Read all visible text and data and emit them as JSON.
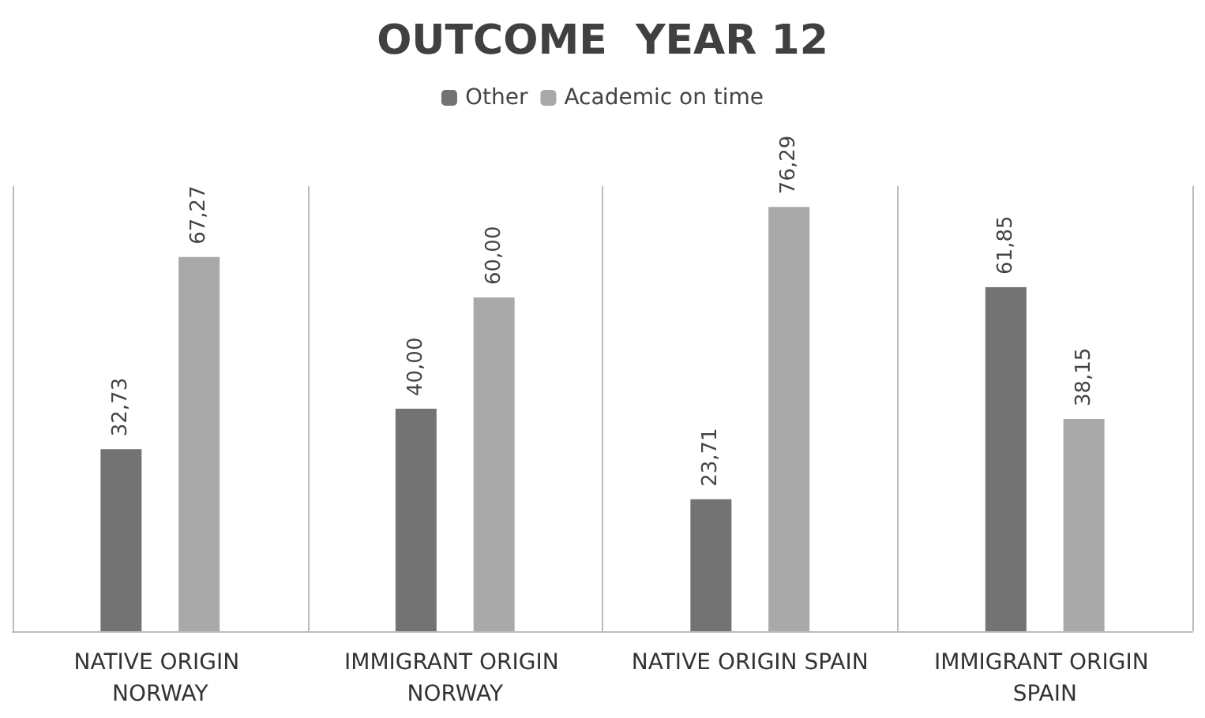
{
  "chart_data": {
    "type": "bar",
    "title": "OUTCOME  YEAR 12",
    "categories": [
      "NATIVE ORIGIN NORWAY",
      "IMMIGRANT ORIGIN NORWAY",
      "NATIVE ORIGIN SPAIN",
      "IMMIGRANT ORIGIN SPAIN"
    ],
    "series": [
      {
        "name": "Other",
        "color": "#737373",
        "values": [
          32.73,
          40.0,
          23.71,
          61.85
        ],
        "value_labels": [
          "32,73",
          "40,00",
          "23,71",
          "61,85"
        ]
      },
      {
        "name": "Academic on time",
        "color": "#a9a9a9",
        "values": [
          67.27,
          60.0,
          76.29,
          38.15
        ],
        "value_labels": [
          "67,27",
          "60,00",
          "76,29",
          "38,15"
        ]
      }
    ],
    "grid": "x",
    "legend": "top",
    "tick_labels": "x"
  }
}
